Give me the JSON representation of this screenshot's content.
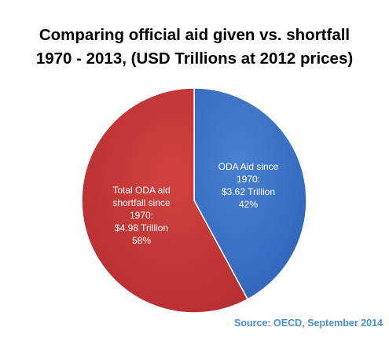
{
  "title_lines": [
    "Comparing official aid given vs. shortfall",
    "1970 - 2013, (USD Trillions at 2012 prices)"
  ],
  "source": "Source: OECD, September 2014",
  "colors": {
    "oda": "#3b6fc4",
    "shortfall": "#c8393a"
  },
  "chart_data": {
    "type": "pie",
    "title": "Comparing official aid given vs. shortfall 1970 - 2013, (USD Trillions at 2012 prices)",
    "unit": "USD Trillions",
    "slices": [
      {
        "name": "ODA Aid since 1970",
        "value": 3.62,
        "percent": 42,
        "color": "#3b6fc4",
        "label_lines": [
          "ODA Aid since",
          "1970:",
          "$3.62 Trillion",
          "42%"
        ]
      },
      {
        "name": "Total ODA aid shortfall since 1970",
        "value": 4.98,
        "percent": 58,
        "color": "#c8393a",
        "label_lines": [
          "Total ODA aid",
          "shortfall since",
          "1970:",
          "$4.98 Trillion",
          "58%"
        ]
      }
    ]
  }
}
